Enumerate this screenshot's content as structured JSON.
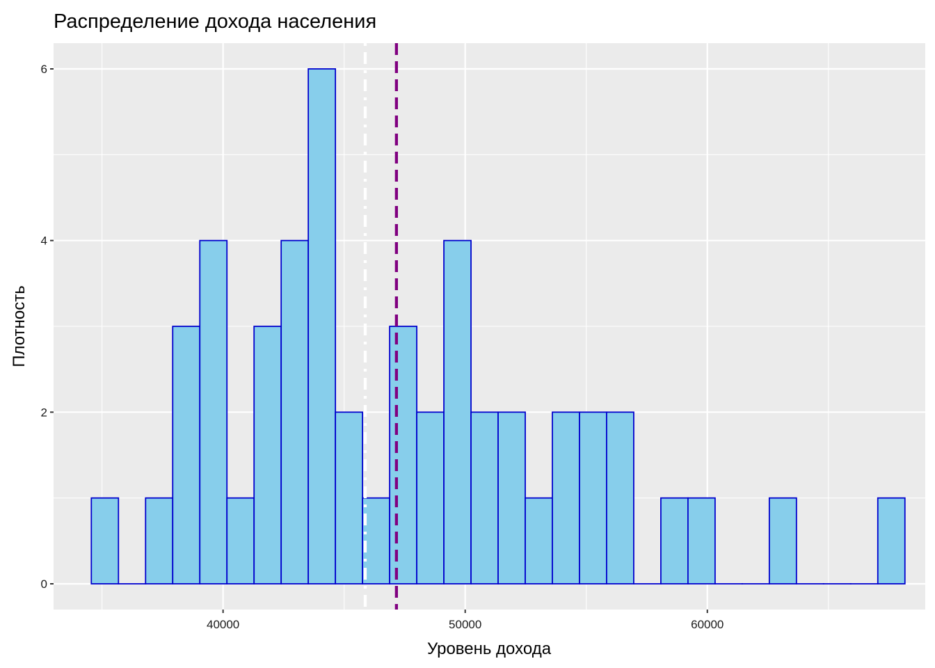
{
  "chart_data": {
    "type": "bar",
    "title": "Распределение дохода населения",
    "xlabel": "Уровень дохода",
    "ylabel": "Плотность",
    "xlim": [
      33000,
      69000
    ],
    "ylim": [
      -0.3,
      6.3
    ],
    "x_ticks": [
      40000,
      50000,
      60000
    ],
    "x_minor_ticks": [
      35000,
      45000,
      55000,
      65000
    ],
    "y_ticks": [
      0,
      2,
      4,
      6
    ],
    "y_minor_ticks": [
      1,
      3,
      5
    ],
    "grid": true,
    "bin_width": 1120,
    "bins": [
      {
        "x": 35120,
        "count": 1
      },
      {
        "x": 36240,
        "count": 0
      },
      {
        "x": 37360,
        "count": 1
      },
      {
        "x": 38480,
        "count": 3
      },
      {
        "x": 39600,
        "count": 4
      },
      {
        "x": 40720,
        "count": 1
      },
      {
        "x": 41840,
        "count": 3
      },
      {
        "x": 42960,
        "count": 4
      },
      {
        "x": 44080,
        "count": 6
      },
      {
        "x": 45200,
        "count": 2
      },
      {
        "x": 46320,
        "count": 1
      },
      {
        "x": 47440,
        "count": 3
      },
      {
        "x": 48560,
        "count": 2
      },
      {
        "x": 49680,
        "count": 4
      },
      {
        "x": 50800,
        "count": 2
      },
      {
        "x": 51920,
        "count": 2
      },
      {
        "x": 53040,
        "count": 1
      },
      {
        "x": 54160,
        "count": 2
      },
      {
        "x": 55280,
        "count": 2
      },
      {
        "x": 56400,
        "count": 2
      },
      {
        "x": 57520,
        "count": 0
      },
      {
        "x": 58640,
        "count": 1
      },
      {
        "x": 59760,
        "count": 1
      },
      {
        "x": 60880,
        "count": 0
      },
      {
        "x": 62000,
        "count": 0
      },
      {
        "x": 63120,
        "count": 1
      },
      {
        "x": 64240,
        "count": 0
      },
      {
        "x": 65360,
        "count": 0
      },
      {
        "x": 66480,
        "count": 0
      },
      {
        "x": 67600,
        "count": 1
      }
    ],
    "reference_lines": [
      {
        "x": 45870,
        "color": "#ffffff",
        "dash": "dotdash"
      },
      {
        "x": 47160,
        "color": "#800080",
        "dash": "dashed"
      }
    ],
    "colors": {
      "bar_fill": "#87ceeb",
      "bar_stroke": "#0000cd",
      "panel": "#ebebeb",
      "grid": "#ffffff"
    }
  }
}
